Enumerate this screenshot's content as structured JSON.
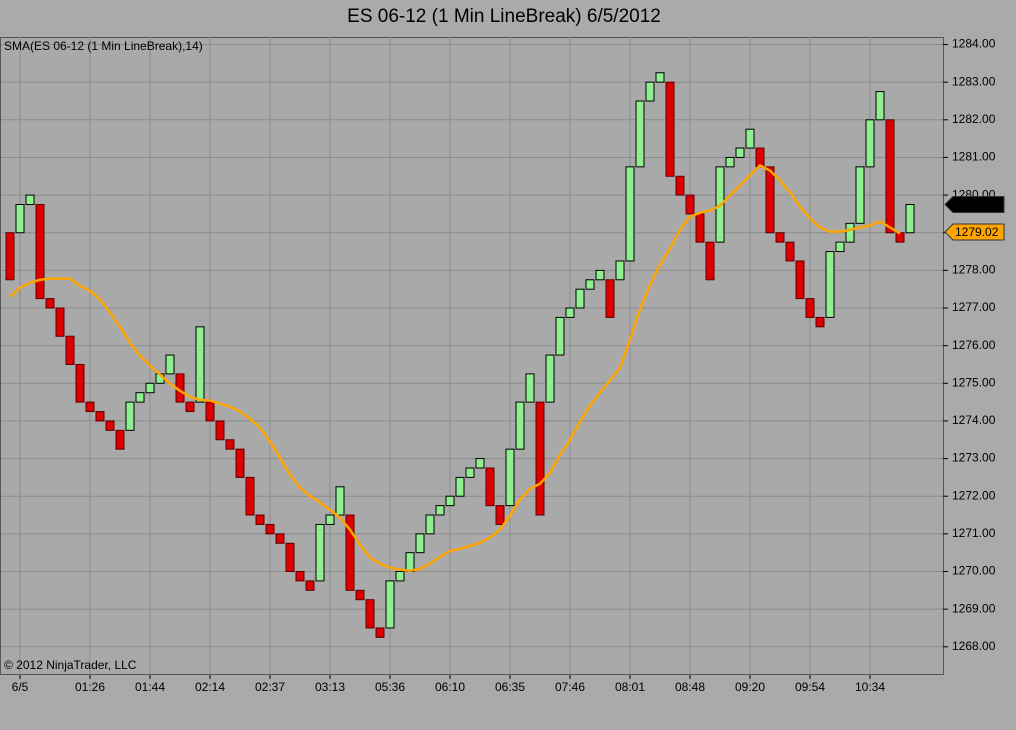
{
  "chart_data": {
    "type": "linebreak",
    "title": "ES 06-12 (1 Min LineBreak)  6/5/2012",
    "indicator_label": "SMA(ES 06-12 (1 Min LineBreak),14)",
    "copyright": "© 2012 NinjaTrader, LLC",
    "categories": [
      null,
      "6/5",
      null,
      null,
      null,
      null,
      null,
      null,
      "01:26",
      null,
      null,
      null,
      null,
      null,
      "01:44",
      null,
      null,
      null,
      null,
      null,
      "02:14",
      null,
      null,
      null,
      null,
      null,
      "02:37",
      null,
      null,
      null,
      null,
      null,
      "03:13",
      null,
      null,
      null,
      null,
      null,
      "05:36",
      null,
      null,
      null,
      null,
      null,
      "06:10",
      null,
      null,
      null,
      null,
      null,
      "06:35",
      null,
      null,
      null,
      null,
      null,
      "07:46",
      null,
      null,
      null,
      null,
      null,
      "08:01",
      null,
      null,
      null,
      null,
      null,
      "08:48",
      null,
      null,
      null,
      null,
      null,
      "09:20",
      null,
      null,
      null,
      null,
      null,
      "09:54",
      null,
      null,
      null,
      null,
      null,
      "10:34",
      null,
      null,
      null,
      null
    ],
    "open": [
      1279.0,
      1279.0,
      1279.75,
      1279.75,
      1277.25,
      1277.0,
      1276.25,
      1275.5,
      1274.5,
      1274.25,
      1274.0,
      1273.75,
      1273.75,
      1274.5,
      1274.75,
      1275.0,
      1275.25,
      1275.25,
      1274.5,
      1274.5,
      1274.5,
      1274.0,
      1273.5,
      1273.25,
      1272.5,
      1271.5,
      1271.25,
      1271.0,
      1270.75,
      1270.0,
      1269.75,
      1269.75,
      1271.25,
      1271.5,
      1271.5,
      1269.5,
      1269.25,
      1268.5,
      1268.5,
      1269.75,
      1270.0,
      1270.5,
      1271.0,
      1271.5,
      1271.75,
      1272.0,
      1272.5,
      1272.75,
      1272.75,
      1271.75,
      1271.75,
      1273.25,
      1274.5,
      1274.5,
      1274.5,
      1275.75,
      1276.75,
      1277.0,
      1277.5,
      1277.75,
      1277.75,
      1277.75,
      1278.25,
      1280.75,
      1282.5,
      1283.0,
      1283.0,
      1280.5,
      1280.0,
      1279.5,
      1278.75,
      1278.75,
      1280.75,
      1281.0,
      1281.25,
      1281.25,
      1280.75,
      1279.0,
      1278.75,
      1278.25,
      1277.25,
      1276.75,
      1276.75,
      1278.5,
      1278.75,
      1279.25,
      1280.75,
      1282.0,
      1282.0,
      1279.0,
      1279.0
    ],
    "close": [
      1277.75,
      1279.75,
      1280.0,
      1277.25,
      1277.0,
      1276.25,
      1275.5,
      1274.5,
      1274.25,
      1274.0,
      1273.75,
      1273.25,
      1274.5,
      1274.75,
      1275.0,
      1275.25,
      1275.75,
      1274.5,
      1274.25,
      1276.5,
      1274.0,
      1273.5,
      1273.25,
      1272.5,
      1271.5,
      1271.25,
      1271.0,
      1270.75,
      1270.0,
      1269.75,
      1269.5,
      1271.25,
      1271.5,
      1272.25,
      1269.5,
      1269.25,
      1268.5,
      1268.25,
      1269.75,
      1270.0,
      1270.5,
      1271.0,
      1271.5,
      1271.75,
      1272.0,
      1272.5,
      1272.75,
      1273.0,
      1271.75,
      1271.25,
      1273.25,
      1274.5,
      1275.25,
      1271.5,
      1275.75,
      1276.75,
      1277.0,
      1277.5,
      1277.75,
      1278.0,
      1276.75,
      1278.25,
      1280.75,
      1282.5,
      1283.0,
      1283.25,
      1280.5,
      1280.0,
      1279.5,
      1278.75,
      1277.75,
      1280.75,
      1281.0,
      1281.25,
      1281.75,
      1280.75,
      1279.0,
      1278.75,
      1278.25,
      1277.25,
      1276.75,
      1276.5,
      1278.5,
      1278.75,
      1279.25,
      1280.75,
      1282.0,
      1282.75,
      1279.0,
      1278.75,
      1279.75
    ],
    "up_color": "#90ee90",
    "down_color": "#dd0000",
    "sma": {
      "color": "#ffa500",
      "values": [
        1277.3,
        1277.54,
        1277.67,
        1277.75,
        1277.78,
        1277.78,
        1277.78,
        1277.59,
        1277.46,
        1277.22,
        1276.88,
        1276.5,
        1276.08,
        1275.73,
        1275.47,
        1275.23,
        1274.99,
        1274.8,
        1274.64,
        1274.56,
        1274.54,
        1274.46,
        1274.38,
        1274.25,
        1274.06,
        1273.82,
        1273.45,
        1273.02,
        1272.57,
        1272.23,
        1272.01,
        1271.83,
        1271.64,
        1271.43,
        1271.11,
        1270.71,
        1270.37,
        1270.21,
        1270.1,
        1270.05,
        1270.02,
        1270.07,
        1270.21,
        1270.39,
        1270.55,
        1270.6,
        1270.68,
        1270.76,
        1270.9,
        1271.11,
        1271.48,
        1271.91,
        1272.2,
        1272.33,
        1272.62,
        1273.1,
        1273.5,
        1273.98,
        1274.41,
        1274.75,
        1275.07,
        1275.42,
        1276.16,
        1276.96,
        1277.62,
        1278.15,
        1278.58,
        1279.08,
        1279.43,
        1279.53,
        1279.59,
        1279.72,
        1279.99,
        1280.25,
        1280.52,
        1280.79,
        1280.65,
        1280.39,
        1280.07,
        1279.69,
        1279.38,
        1279.14,
        1279.03,
        1279.03,
        1279.08,
        1279.14,
        1279.19,
        1279.3,
        1279.14,
        1278.98,
        null
      ]
    },
    "markers": [
      {
        "value": 1279.75,
        "color": "#000000",
        "text_color": "#ffffff"
      },
      {
        "value": 1279.02,
        "color": "#ffa500",
        "text_color": "#000000"
      }
    ],
    "ylim": [
      1267.25,
      1284.2
    ],
    "yticks": [
      {
        "value": 1268,
        "label": "1268.00"
      },
      {
        "value": 1269,
        "label": "1269.00"
      },
      {
        "value": 1270,
        "label": "1270.00"
      },
      {
        "value": 1271,
        "label": "1271.00"
      },
      {
        "value": 1272,
        "label": "1272.00"
      },
      {
        "value": 1273,
        "label": "1273.00"
      },
      {
        "value": 1274,
        "label": "1274.00"
      },
      {
        "value": 1275,
        "label": "1275.00"
      },
      {
        "value": 1276,
        "label": "1276.00"
      },
      {
        "value": 1277,
        "label": "1277.00"
      },
      {
        "value": 1278,
        "label": "1278.00"
      },
      {
        "value": 1279,
        "label": "1279.00"
      },
      {
        "value": 1280,
        "label": "1280.00"
      },
      {
        "value": 1281,
        "label": "1281.00"
      },
      {
        "value": 1282,
        "label": "1282.00"
      },
      {
        "value": 1283,
        "label": "1283.00"
      },
      {
        "value": 1284,
        "label": "1284.00"
      }
    ],
    "grid": true
  }
}
